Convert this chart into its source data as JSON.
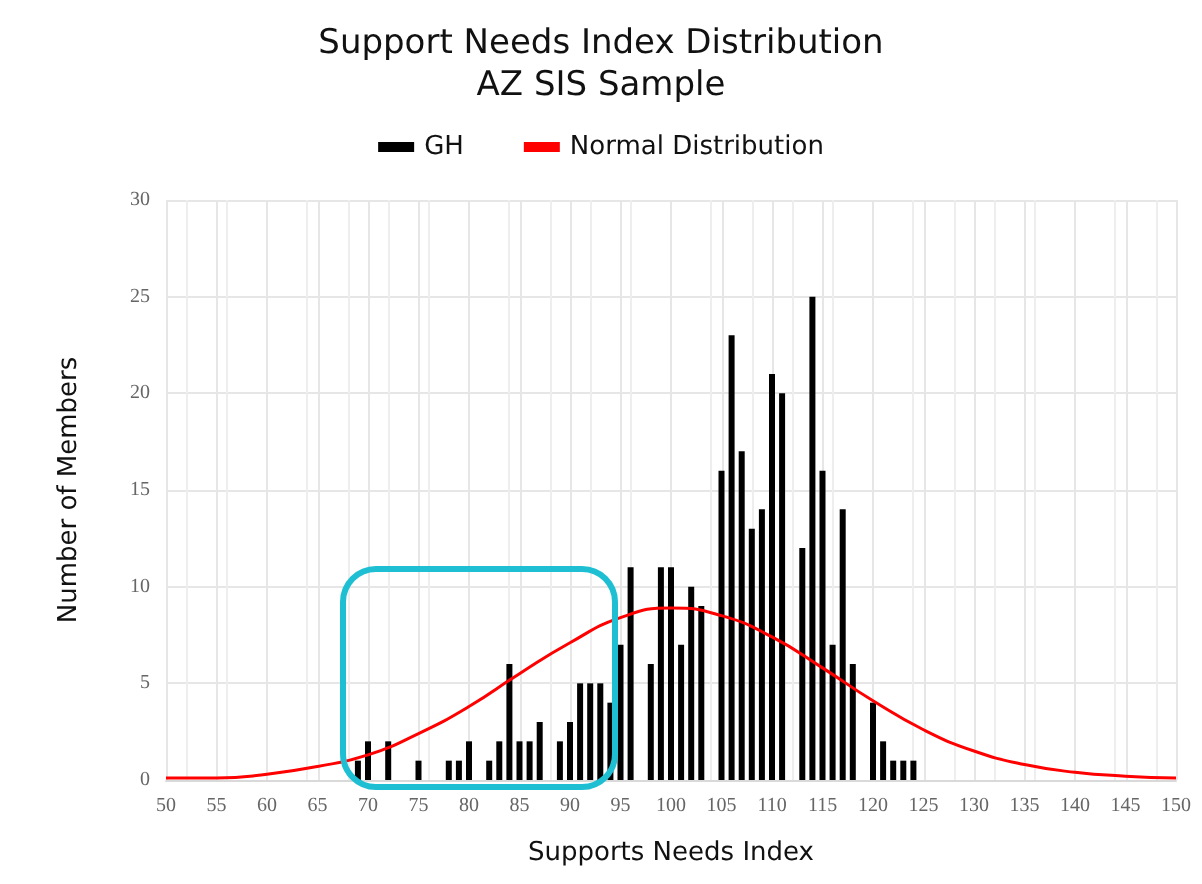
{
  "chart_data": {
    "type": "bar",
    "title": "Support Needs Index Distribution",
    "subtitle": "AZ SIS Sample",
    "xlabel": "Supports Needs Index",
    "ylabel": "Number of Members",
    "xlim": [
      50,
      150
    ],
    "xticks": [
      50,
      55,
      60,
      65,
      70,
      75,
      80,
      85,
      90,
      95,
      100,
      105,
      110,
      115,
      120,
      125,
      130,
      135,
      140,
      145,
      150
    ],
    "ylim": [
      0,
      30
    ],
    "yticks": [
      0,
      5,
      10,
      15,
      20,
      25,
      30
    ],
    "grid": true,
    "legend": "top",
    "series": [
      {
        "name": "GH",
        "color": "#000000",
        "x": [
          69,
          70,
          72,
          75,
          78,
          79,
          80,
          82,
          83,
          84,
          85,
          86,
          87,
          89,
          90,
          91,
          92,
          93,
          94,
          95,
          96,
          98,
          99,
          100,
          101,
          102,
          103,
          105,
          106,
          107,
          108,
          109,
          110,
          111,
          113,
          114,
          115,
          116,
          117,
          118,
          120,
          121,
          122,
          123,
          124
        ],
        "values": [
          1,
          2,
          2,
          1,
          1,
          1,
          2,
          1,
          2,
          6,
          2,
          2,
          3,
          2,
          3,
          5,
          5,
          5,
          4,
          7,
          11,
          6,
          11,
          11,
          7,
          10,
          9,
          16,
          23,
          17,
          13,
          14,
          21,
          20,
          12,
          25,
          16,
          7,
          14,
          6,
          4,
          2,
          1,
          1,
          1
        ]
      },
      {
        "name": "Normal Distribution",
        "type": "line",
        "color": "#ff0000",
        "x": [
          50,
          55,
          60,
          65,
          70,
          75,
          80,
          85,
          90,
          95,
          100,
          105,
          110,
          115,
          120,
          125,
          130,
          135,
          140,
          145,
          150
        ],
        "values": [
          0.1,
          0.1,
          0.3,
          0.7,
          1.3,
          2.4,
          3.8,
          5.5,
          7.1,
          8.4,
          8.9,
          8.5,
          7.4,
          5.8,
          4.1,
          2.6,
          1.5,
          0.8,
          0.4,
          0.2,
          0.1
        ]
      }
    ]
  }
}
